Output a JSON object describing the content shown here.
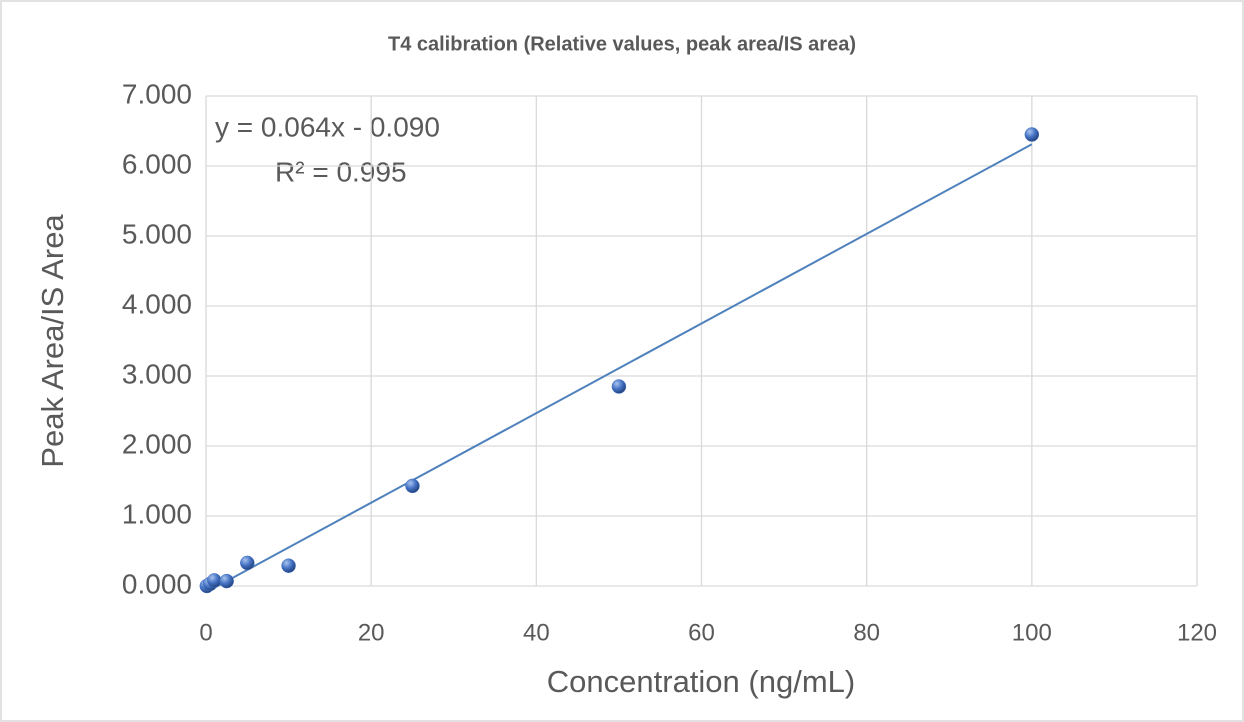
{
  "chart_data": {
    "type": "scatter",
    "title": "T4 calibration (Relative values, peak area/IS area)",
    "x_label": "Concentration (ng/mL)",
    "y_label": "Peak Area/IS Area",
    "series": [
      {
        "name": "T4",
        "color": "#4472c4",
        "x": [
          0.1,
          0.5,
          1,
          2.5,
          5,
          10,
          25,
          50,
          100
        ],
        "values": [
          0.0,
          0.03,
          0.08,
          0.07,
          0.33,
          0.29,
          1.43,
          2.85,
          6.45
        ]
      }
    ],
    "trendline": {
      "slope": 0.064,
      "intercept": -0.09,
      "color": "#4f81bd"
    },
    "annotations": [
      "y = 0.064x - 0.090",
      "R² = 0.995"
    ],
    "xlim": [
      0,
      120
    ],
    "xticks": [
      0,
      20,
      40,
      60,
      80,
      100,
      120
    ],
    "ylim": [
      0,
      7
    ],
    "yticks": [
      {
        "value": 0,
        "label": "0.000"
      },
      {
        "value": 1,
        "label": "1.000"
      },
      {
        "value": 2,
        "label": "2.000"
      },
      {
        "value": 3,
        "label": "3.000"
      },
      {
        "value": 4,
        "label": "4.000"
      },
      {
        "value": 5,
        "label": "5.000"
      },
      {
        "value": 6,
        "label": "6.000"
      },
      {
        "value": 7,
        "label": "7.000"
      }
    ],
    "grid": true
  }
}
